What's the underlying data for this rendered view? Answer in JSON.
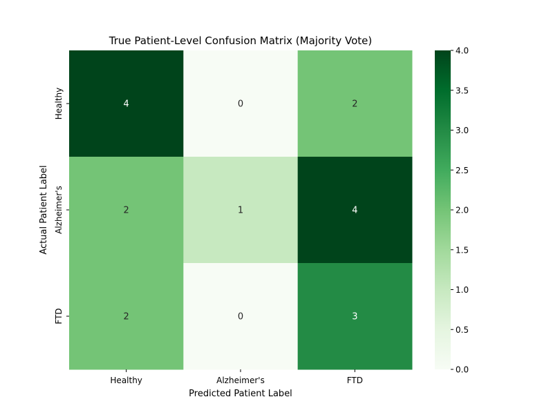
{
  "chart_data": {
    "type": "heatmap",
    "title": "True Patient-Level Confusion Matrix (Majority Vote)",
    "xlabel": "Predicted Patient Label",
    "ylabel": "Actual Patient Label",
    "x_categories": [
      "Healthy",
      "Alzheimer's",
      "FTD"
    ],
    "y_categories": [
      "Healthy",
      "Alzheimer's",
      "FTD"
    ],
    "values": [
      [
        4,
        0,
        2
      ],
      [
        2,
        1,
        4
      ],
      [
        2,
        0,
        3
      ]
    ],
    "colorbar": {
      "min": 0.0,
      "max": 4.0,
      "ticks": [
        "0.0",
        "0.5",
        "1.0",
        "1.5",
        "2.0",
        "2.5",
        "3.0",
        "3.5",
        "4.0"
      ],
      "colormap": "Greens"
    },
    "colors": {
      "low": "#f7fcf5",
      "high": "#00441b",
      "annotation_dark_bg": "#ffffff",
      "annotation_light_bg": "#262626"
    }
  }
}
